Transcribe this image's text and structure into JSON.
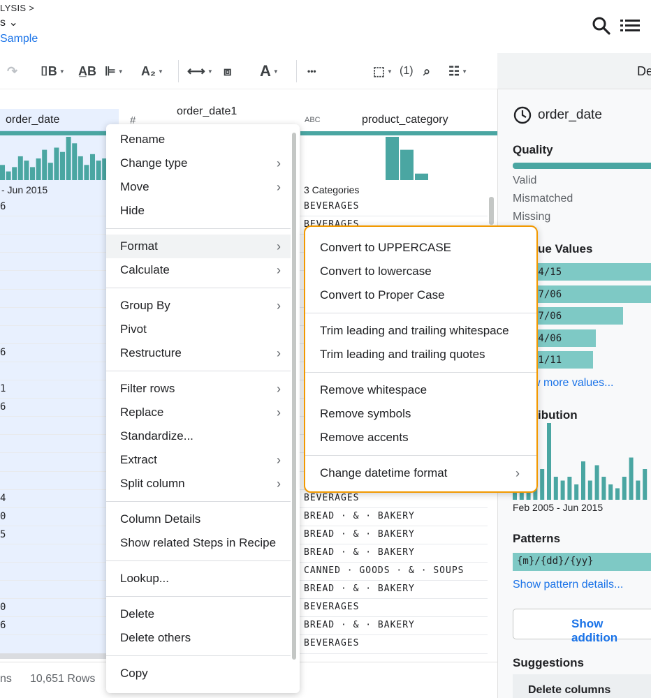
{
  "header": {
    "breadcrumb": "LYSIS >",
    "title": "s ⌄",
    "sample_link": "Sample"
  },
  "icons": {
    "search": "search-icon",
    "list": "list-icon"
  },
  "toolbar": {
    "selection_count": "(1)",
    "more": "•••"
  },
  "side_panel": {
    "tab_label": "De",
    "column_name": "order_date",
    "quality_heading": "Quality",
    "quality_rows": [
      "Valid",
      "Mismatched",
      "Missing"
    ],
    "unique_heading": "ue Values",
    "unique_values": [
      {
        "label": "/4/15",
        "fraction": 1.0
      },
      {
        "label": "27/06",
        "fraction": 1.0
      },
      {
        "label": "07/06",
        "fraction": 0.8
      },
      {
        "label": "04/06",
        "fraction": 0.6
      },
      {
        "label": "31/11",
        "fraction": 0.58
      }
    ],
    "more_values": "w more values...",
    "distribution_heading": "ibution",
    "distribution_bars": [
      0.35,
      0.55,
      0.7,
      0.7,
      0.4,
      1.0,
      0.3,
      0.25,
      0.3,
      0.2,
      0.5,
      0.25,
      0.45,
      0.3,
      0.2,
      0.15,
      0.3,
      0.55,
      0.25,
      0.4
    ],
    "range_label": "Feb 2005 - Jun 2015",
    "patterns_heading": "Patterns",
    "pattern_value": "{m}/{dd}/{yy}",
    "show_pattern": "Show pattern details...",
    "show_additional": "Show addition",
    "suggestions_heading": "Suggestions",
    "suggestion_first": "Delete columns"
  },
  "grid": {
    "col1_name": "order_date",
    "col2_name": "order_date1",
    "col3_type": "ABC",
    "col3_name": "product_category",
    "col1_range": "- Jun 2015",
    "col1_hist": [
      0.35,
      0.2,
      0.3,
      0.55,
      0.45,
      0.3,
      0.5,
      0.7,
      0.4,
      0.75,
      0.65,
      1.0,
      0.85,
      0.55,
      0.35,
      0.6,
      0.45,
      0.5,
      0.65
    ],
    "col3_hist": [
      1.0,
      0.7,
      0.15
    ],
    "col3_summary": "3 Categories",
    "col1_cells": [
      {
        "row": 0,
        "text": "6"
      },
      {
        "row": 8,
        "text": "6"
      },
      {
        "row": 10,
        "text": "1"
      },
      {
        "row": 11,
        "text": "6"
      },
      {
        "row": 16,
        "text": "4"
      },
      {
        "row": 17,
        "text": "0"
      },
      {
        "row": 18,
        "text": "5"
      },
      {
        "row": 22,
        "text": "0"
      },
      {
        "row": 23,
        "text": "6"
      }
    ],
    "categories_top": [
      "BEVERAGES",
      "BEVERAGES"
    ],
    "categories_bottom": [
      "BEVERAGES",
      "BREAD · & · BAKERY",
      "BREAD · & · BAKERY",
      "BREAD · & · BAKERY",
      "CANNED · GOODS · & · SOUPS",
      "BREAD · & · BAKERY",
      "BEVERAGES",
      "BREAD · & · BAKERY",
      "BEVERAGES"
    ]
  },
  "footer": {
    "columns_partial": "ns",
    "rows": "10,651 Rows"
  },
  "context_menu": {
    "groups": [
      [
        {
          "label": "Rename",
          "sub": false
        },
        {
          "label": "Change type",
          "sub": true
        },
        {
          "label": "Move",
          "sub": true
        },
        {
          "label": "Hide",
          "sub": false
        }
      ],
      [
        {
          "label": "Format",
          "sub": true,
          "active": true
        },
        {
          "label": "Calculate",
          "sub": true
        }
      ],
      [
        {
          "label": "Group By",
          "sub": true
        },
        {
          "label": "Pivot",
          "sub": false
        },
        {
          "label": "Restructure",
          "sub": true
        }
      ],
      [
        {
          "label": "Filter rows",
          "sub": true
        },
        {
          "label": "Replace",
          "sub": true
        },
        {
          "label": "Standardize...",
          "sub": false
        },
        {
          "label": "Extract",
          "sub": true
        },
        {
          "label": "Split column",
          "sub": true
        }
      ],
      [
        {
          "label": "Column Details",
          "sub": false
        },
        {
          "label": "Show related Steps in Recipe",
          "sub": false
        }
      ],
      [
        {
          "label": "Lookup...",
          "sub": false
        }
      ],
      [
        {
          "label": "Delete",
          "sub": false
        },
        {
          "label": "Delete others",
          "sub": false
        }
      ],
      [
        {
          "label": "Copy",
          "sub": false
        }
      ]
    ]
  },
  "format_submenu": {
    "groups": [
      [
        {
          "label": "Convert to UPPERCASE",
          "sub": false
        },
        {
          "label": "Convert to lowercase",
          "sub": false
        },
        {
          "label": "Convert to Proper Case",
          "sub": false
        }
      ],
      [
        {
          "label": "Trim leading and trailing whitespace",
          "sub": false
        },
        {
          "label": "Trim leading and trailing quotes",
          "sub": false
        }
      ],
      [
        {
          "label": "Remove whitespace",
          "sub": false
        },
        {
          "label": "Remove symbols",
          "sub": false
        },
        {
          "label": "Remove accents",
          "sub": false
        }
      ],
      [
        {
          "label": "Change datetime format",
          "sub": true
        }
      ]
    ]
  },
  "colors": {
    "accent": "#1a73e8",
    "teal_bar": "#4aa6a2",
    "teal_light": "#7ec9c5",
    "submenu_border": "#f29900"
  }
}
